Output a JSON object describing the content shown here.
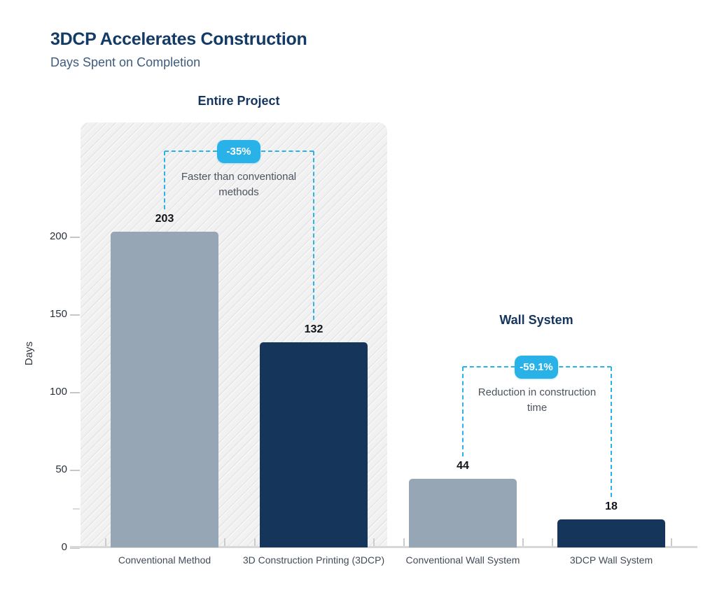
{
  "header": {
    "title": "3DCP Accelerates Construction",
    "subtitle": "Days Spent on Completion"
  },
  "colors": {
    "accent_cyan": "#29b2e8",
    "title_navy": "#143a66",
    "bar_light": "#97a6b4",
    "bar_dark": "#16355b"
  },
  "chart_data": {
    "type": "bar",
    "ylabel": "Days",
    "yticks": [
      0,
      50,
      100,
      150,
      200
    ],
    "yticks_minor": [
      25
    ],
    "ylim": [
      0,
      273
    ],
    "grid": false,
    "categories": [
      "Conventional Method",
      "3D Construction Printing (3DCP)",
      "Conventional Wall System",
      "3DCP Wall System"
    ],
    "values": [
      203,
      132,
      44,
      18
    ],
    "groups": [
      {
        "title": "Entire Project",
        "hatched_background": true,
        "bars": [
          {
            "label": "Conventional Method",
            "value": 203,
            "shade": "light"
          },
          {
            "label": "3D Construction Printing (3DCP)",
            "value": 132,
            "shade": "dark"
          }
        ],
        "annotation": {
          "badge": "-35%",
          "text": "Faster than conventional methods"
        }
      },
      {
        "title": "Wall System",
        "hatched_background": false,
        "bars": [
          {
            "label": "Conventional Wall System",
            "value": 44,
            "shade": "light"
          },
          {
            "label": "3DCP Wall System",
            "value": 18,
            "shade": "dark"
          }
        ],
        "annotation": {
          "badge": "-59.1%",
          "text": "Reduction in construction time"
        }
      }
    ]
  }
}
